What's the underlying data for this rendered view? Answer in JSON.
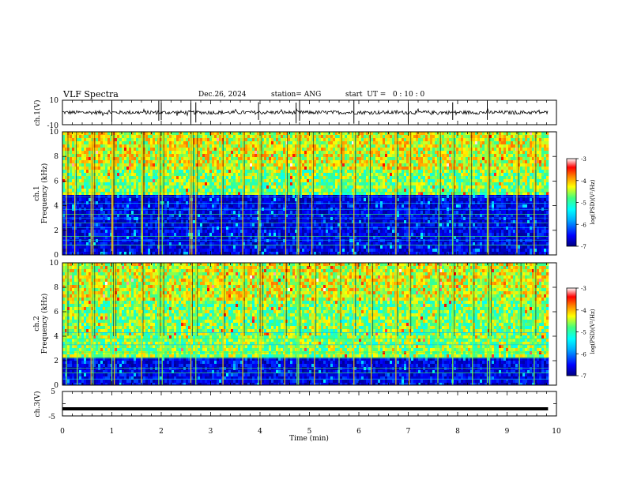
{
  "header": {
    "title": "VLF Spectra",
    "date": "Dec.26, 2024",
    "station": "station= ANG",
    "start": "start  UT =   0 : 10 : 0"
  },
  "chart_data": [
    {
      "type": "line",
      "panel": "ch1-waveform",
      "ylabel": "ch.1(V)",
      "ylim": [
        -10,
        10
      ],
      "yticks": [
        "10",
        "-10"
      ],
      "xlim": [
        0,
        10
      ],
      "data_end_min": 9.83,
      "baseline_v": 0.0,
      "noise_amplitude_v": 1.5,
      "spike_times_min": [
        1.0,
        1.95,
        2.0,
        2.6,
        2.7,
        3.97,
        4.73,
        4.8,
        5.9,
        7.0,
        7.9,
        8.6
      ]
    },
    {
      "type": "heatmap",
      "panel": "ch1-spectrogram",
      "ylabel": "ch.1 Frequency (kHz)",
      "ylim": [
        0,
        10
      ],
      "yticks": [
        "0",
        "2",
        "4",
        "6",
        "8",
        "10"
      ],
      "xlim": [
        0,
        10
      ],
      "data_end_min": 9.83,
      "band_boundary_khz": 4.8,
      "lines_khz": [
        0.8,
        1.2,
        1.5,
        2.2,
        2.6,
        3.0,
        3.3,
        3.7,
        4.2,
        4.7,
        5.1
      ],
      "sferic_times_min": [
        0.08,
        0.25,
        0.58,
        0.62,
        1.0,
        1.02,
        1.6,
        1.62,
        1.95,
        2.02,
        2.58,
        2.62,
        2.7,
        3.22,
        3.65,
        3.97,
        4.0,
        4.52,
        4.75,
        4.78,
        5.05,
        5.62,
        5.9,
        6.2,
        6.75,
        7.02,
        7.62,
        7.9,
        8.25,
        8.6,
        8.62,
        9.2,
        9.55
      ],
      "colorbar": {
        "label": "log(PSD)(V²/Hz)",
        "range": [
          -7,
          -3
        ],
        "ticks": [
          "-3",
          "-4",
          "-5",
          "-6",
          "-7"
        ]
      }
    },
    {
      "type": "heatmap",
      "panel": "ch2-spectrogram",
      "ylabel": "ch.2 Frequency (kHz)",
      "ylim": [
        0,
        10
      ],
      "yticks": [
        "0",
        "2",
        "4",
        "6",
        "8",
        "10"
      ],
      "xlim": [
        0,
        10
      ],
      "data_end_min": 9.83,
      "band_boundary_khz": 2.2,
      "lines_khz": [
        0.5,
        1.0,
        1.4,
        2.2,
        2.7,
        3.3,
        3.8,
        4.3
      ],
      "sferic_times_min": [
        0.08,
        0.3,
        0.58,
        0.62,
        1.0,
        1.05,
        1.6,
        1.95,
        2.02,
        2.6,
        2.7,
        3.25,
        3.65,
        3.97,
        4.02,
        4.5,
        4.75,
        4.78,
        5.1,
        5.6,
        5.9,
        6.25,
        6.75,
        7.02,
        7.6,
        7.9,
        8.3,
        8.6,
        8.65,
        9.25,
        9.55
      ],
      "colorbar": {
        "label": "log(PSD)(V²/Hz)",
        "range": [
          -7,
          -3
        ],
        "ticks": [
          "-3",
          "-4",
          "-5",
          "-6",
          "-7"
        ]
      }
    },
    {
      "type": "line",
      "panel": "ch3-waveform",
      "ylabel": "ch.3(V)",
      "ylim": [
        -5,
        5
      ],
      "yticks": [
        "5",
        "0",
        "-5"
      ],
      "xlim": [
        0,
        10
      ],
      "data_end_min": 9.83,
      "value_v": -2.1
    }
  ],
  "xaxis": {
    "label": "Time  (min)",
    "ticks": [
      "0",
      "1",
      "2",
      "3",
      "4",
      "5",
      "6",
      "7",
      "8",
      "9",
      "10"
    ]
  },
  "colors": {
    "colormap": [
      "#000080",
      "#0000ff",
      "#00b0ff",
      "#00ffff",
      "#40ff80",
      "#ffff00",
      "#ff8000",
      "#ff0000",
      "#ffffff"
    ]
  }
}
